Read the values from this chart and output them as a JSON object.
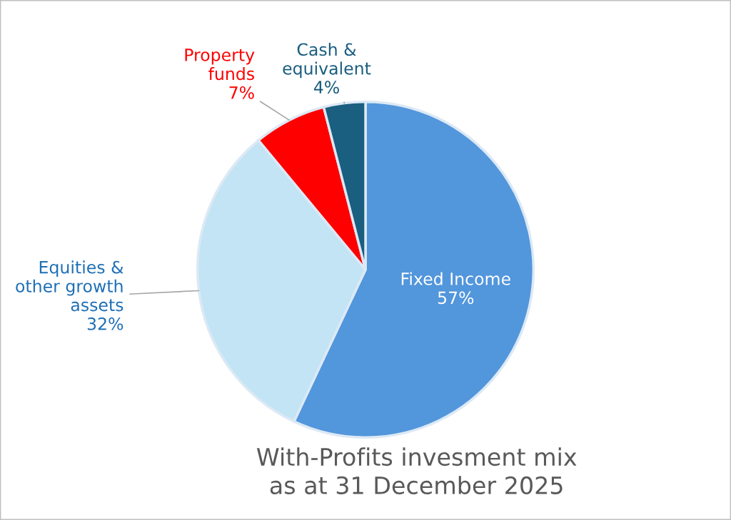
{
  "chart_data": {
    "type": "pie",
    "title": "With-Profits invesment mix\nas at 31 December 2025",
    "categories": [
      "Fixed Income",
      "Equities &\nother growth\nassets",
      "Property\nfunds",
      "Cash &\nequivalent"
    ],
    "values": [
      57,
      32,
      7,
      4
    ],
    "value_labels": [
      "57%",
      "32%",
      "7%",
      "4%"
    ],
    "colors": [
      "#5296dc",
      "#c2e4f5",
      "#ff0000",
      "#1a5e80"
    ]
  }
}
